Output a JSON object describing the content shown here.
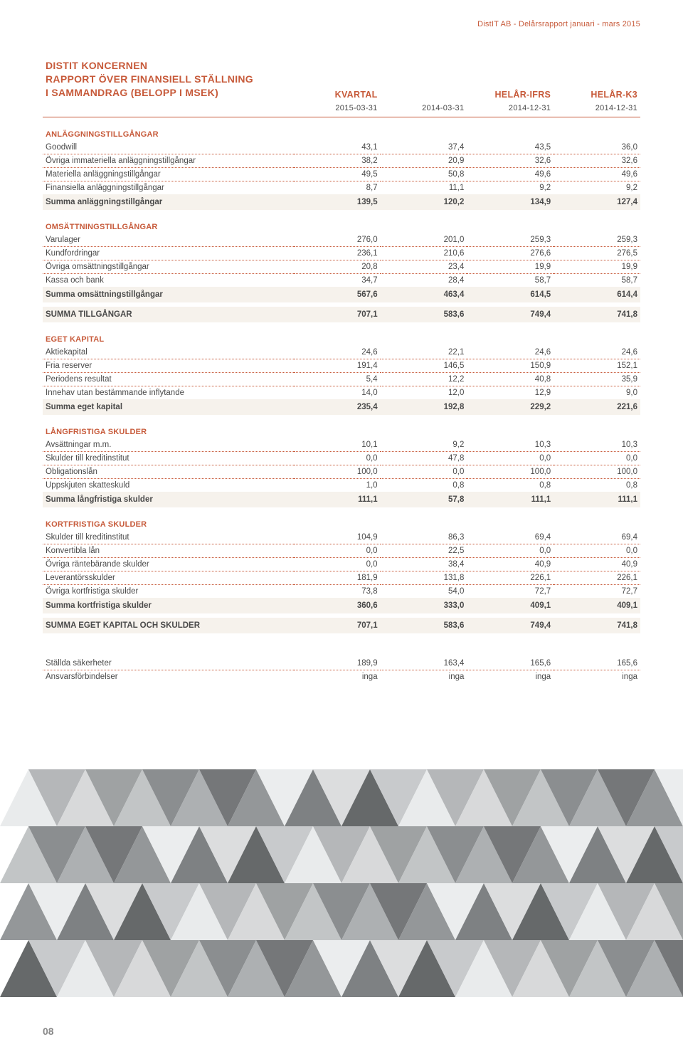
{
  "header_right": "DistIT AB - Delårsrapport januari - mars 2015",
  "title_lines": [
    "DISTIT KONCERNEN",
    "RAPPORT ÖVER FINANSIELL STÄLLNING",
    "I SAMMANDRAG  (BELOPP I MSEK)"
  ],
  "col_headers": [
    "KVARTAL",
    "",
    "HELÅR-IFRS",
    "HELÅR-K3"
  ],
  "col_dates": [
    "2015-03-31",
    "2014-03-31",
    "2014-12-31",
    "2014-12-31"
  ],
  "page_number": "08",
  "colors": {
    "accent": "#c75a3a",
    "sum_bg": "#f6f2ec",
    "text": "#4a4a4a"
  },
  "sections": [
    {
      "heading": "ANLÄGGNINGSTILLGÅNGAR",
      "rows": [
        {
          "label": "Goodwill",
          "v": [
            "43,1",
            "37,4",
            "43,5",
            "36,0"
          ],
          "dotted": true
        },
        {
          "label": "Övriga immateriella anläggningstillgångar",
          "v": [
            "38,2",
            "20,9",
            "32,6",
            "32,6"
          ],
          "dotted": true
        },
        {
          "label": "Materiella anläggningstillgångar",
          "v": [
            "49,5",
            "50,8",
            "49,6",
            "49,6"
          ],
          "dotted": true
        },
        {
          "label": "Finansiella anläggningstillgångar",
          "v": [
            "8,7",
            "11,1",
            "9,2",
            "9,2"
          ],
          "dotted": false
        }
      ],
      "sums": [
        {
          "label": "Summa anläggningstillgångar",
          "v": [
            "139,5",
            "120,2",
            "134,9",
            "127,4"
          ]
        }
      ]
    },
    {
      "heading": "OMSÄTTNINGSTILLGÅNGAR",
      "rows": [
        {
          "label": "Varulager",
          "v": [
            "276,0",
            "201,0",
            "259,3",
            "259,3"
          ],
          "dotted": true
        },
        {
          "label": "Kundfordringar",
          "v": [
            "236,1",
            "210,6",
            "276,6",
            "276,5"
          ],
          "dotted": true
        },
        {
          "label": "Övriga omsättningstillgångar",
          "v": [
            "20,8",
            "23,4",
            "19,9",
            "19,9"
          ],
          "dotted": true
        },
        {
          "label": "Kassa och bank",
          "v": [
            "34,7",
            "28,4",
            "58,7",
            "58,7"
          ],
          "dotted": false
        }
      ],
      "sums": [
        {
          "label": "Summa omsättningstillgångar",
          "v": [
            "567,6",
            "463,4",
            "614,5",
            "614,4"
          ]
        },
        {
          "label": "SUMMA TILLGÅNGAR",
          "v": [
            "707,1",
            "583,6",
            "749,4",
            "741,8"
          ]
        }
      ]
    },
    {
      "heading": "EGET KAPITAL",
      "rows": [
        {
          "label": "Aktiekapital",
          "v": [
            "24,6",
            "22,1",
            "24,6",
            "24,6"
          ],
          "dotted": true
        },
        {
          "label": "Fria reserver",
          "v": [
            "191,4",
            "146,5",
            "150,9",
            "152,1"
          ],
          "dotted": true
        },
        {
          "label": "Periodens resultat",
          "v": [
            "5,4",
            "12,2",
            "40,8",
            "35,9"
          ],
          "dotted": true
        },
        {
          "label": "Innehav utan bestämmande inflytande",
          "v": [
            "14,0",
            "12,0",
            "12,9",
            "9,0"
          ],
          "dotted": false
        }
      ],
      "sums": [
        {
          "label": "Summa eget kapital",
          "v": [
            "235,4",
            "192,8",
            "229,2",
            "221,6"
          ]
        }
      ]
    },
    {
      "heading": "LÅNGFRISTIGA SKULDER",
      "rows": [
        {
          "label": "Avsättningar m.m.",
          "v": [
            "10,1",
            "9,2",
            "10,3",
            "10,3"
          ],
          "dotted": true
        },
        {
          "label": "Skulder till kreditinstitut",
          "v": [
            "0,0",
            "47,8",
            "0,0",
            "0,0"
          ],
          "dotted": true
        },
        {
          "label": "Obligationslån",
          "v": [
            "100,0",
            "0,0",
            "100,0",
            "100,0"
          ],
          "dotted": true
        },
        {
          "label": "Uppskjuten skatteskuld",
          "v": [
            "1,0",
            "0,8",
            "0,8",
            "0,8"
          ],
          "dotted": false
        }
      ],
      "sums": [
        {
          "label": "Summa långfristiga skulder",
          "v": [
            "111,1",
            "57,8",
            "111,1",
            "111,1"
          ]
        }
      ]
    },
    {
      "heading": "KORTFRISTIGA SKULDER",
      "rows": [
        {
          "label": "Skulder till kreditinstitut",
          "v": [
            "104,9",
            "86,3",
            "69,4",
            "69,4"
          ],
          "dotted": true
        },
        {
          "label": "Konvertibla lån",
          "v": [
            "0,0",
            "22,5",
            "0,0",
            "0,0"
          ],
          "dotted": true
        },
        {
          "label": "Övriga räntebärande skulder",
          "v": [
            "0,0",
            "38,4",
            "40,9",
            "40,9"
          ],
          "dotted": true
        },
        {
          "label": "Leverantörsskulder",
          "v": [
            "181,9",
            "131,8",
            "226,1",
            "226,1"
          ],
          "dotted": true
        },
        {
          "label": "Övriga kortfristiga skulder",
          "v": [
            "73,8",
            "54,0",
            "72,7",
            "72,7"
          ],
          "dotted": false
        }
      ],
      "sums": [
        {
          "label": "Summa kortfristiga skulder",
          "v": [
            "360,6",
            "333,0",
            "409,1",
            "409,1"
          ]
        },
        {
          "label": "SUMMA EGET KAPITAL OCH SKULDER",
          "v": [
            "707,1",
            "583,6",
            "749,4",
            "741,8"
          ]
        }
      ]
    },
    {
      "heading": "",
      "rows": [
        {
          "label": "Ställda säkerheter",
          "v": [
            "189,9",
            "163,4",
            "165,6",
            "165,6"
          ],
          "dotted": true
        },
        {
          "label": "Ansvarsförbindelser",
          "v": [
            "inga",
            "inga",
            "inga",
            "inga"
          ],
          "dotted": false
        }
      ],
      "sums": []
    }
  ],
  "decoration": {
    "type": "triangle-pattern",
    "palette": [
      "#e8eaeb",
      "#d6d8d9",
      "#bfc2c4",
      "#a9acae",
      "#8f9294",
      "#787b7d",
      "#5e6163"
    ]
  }
}
